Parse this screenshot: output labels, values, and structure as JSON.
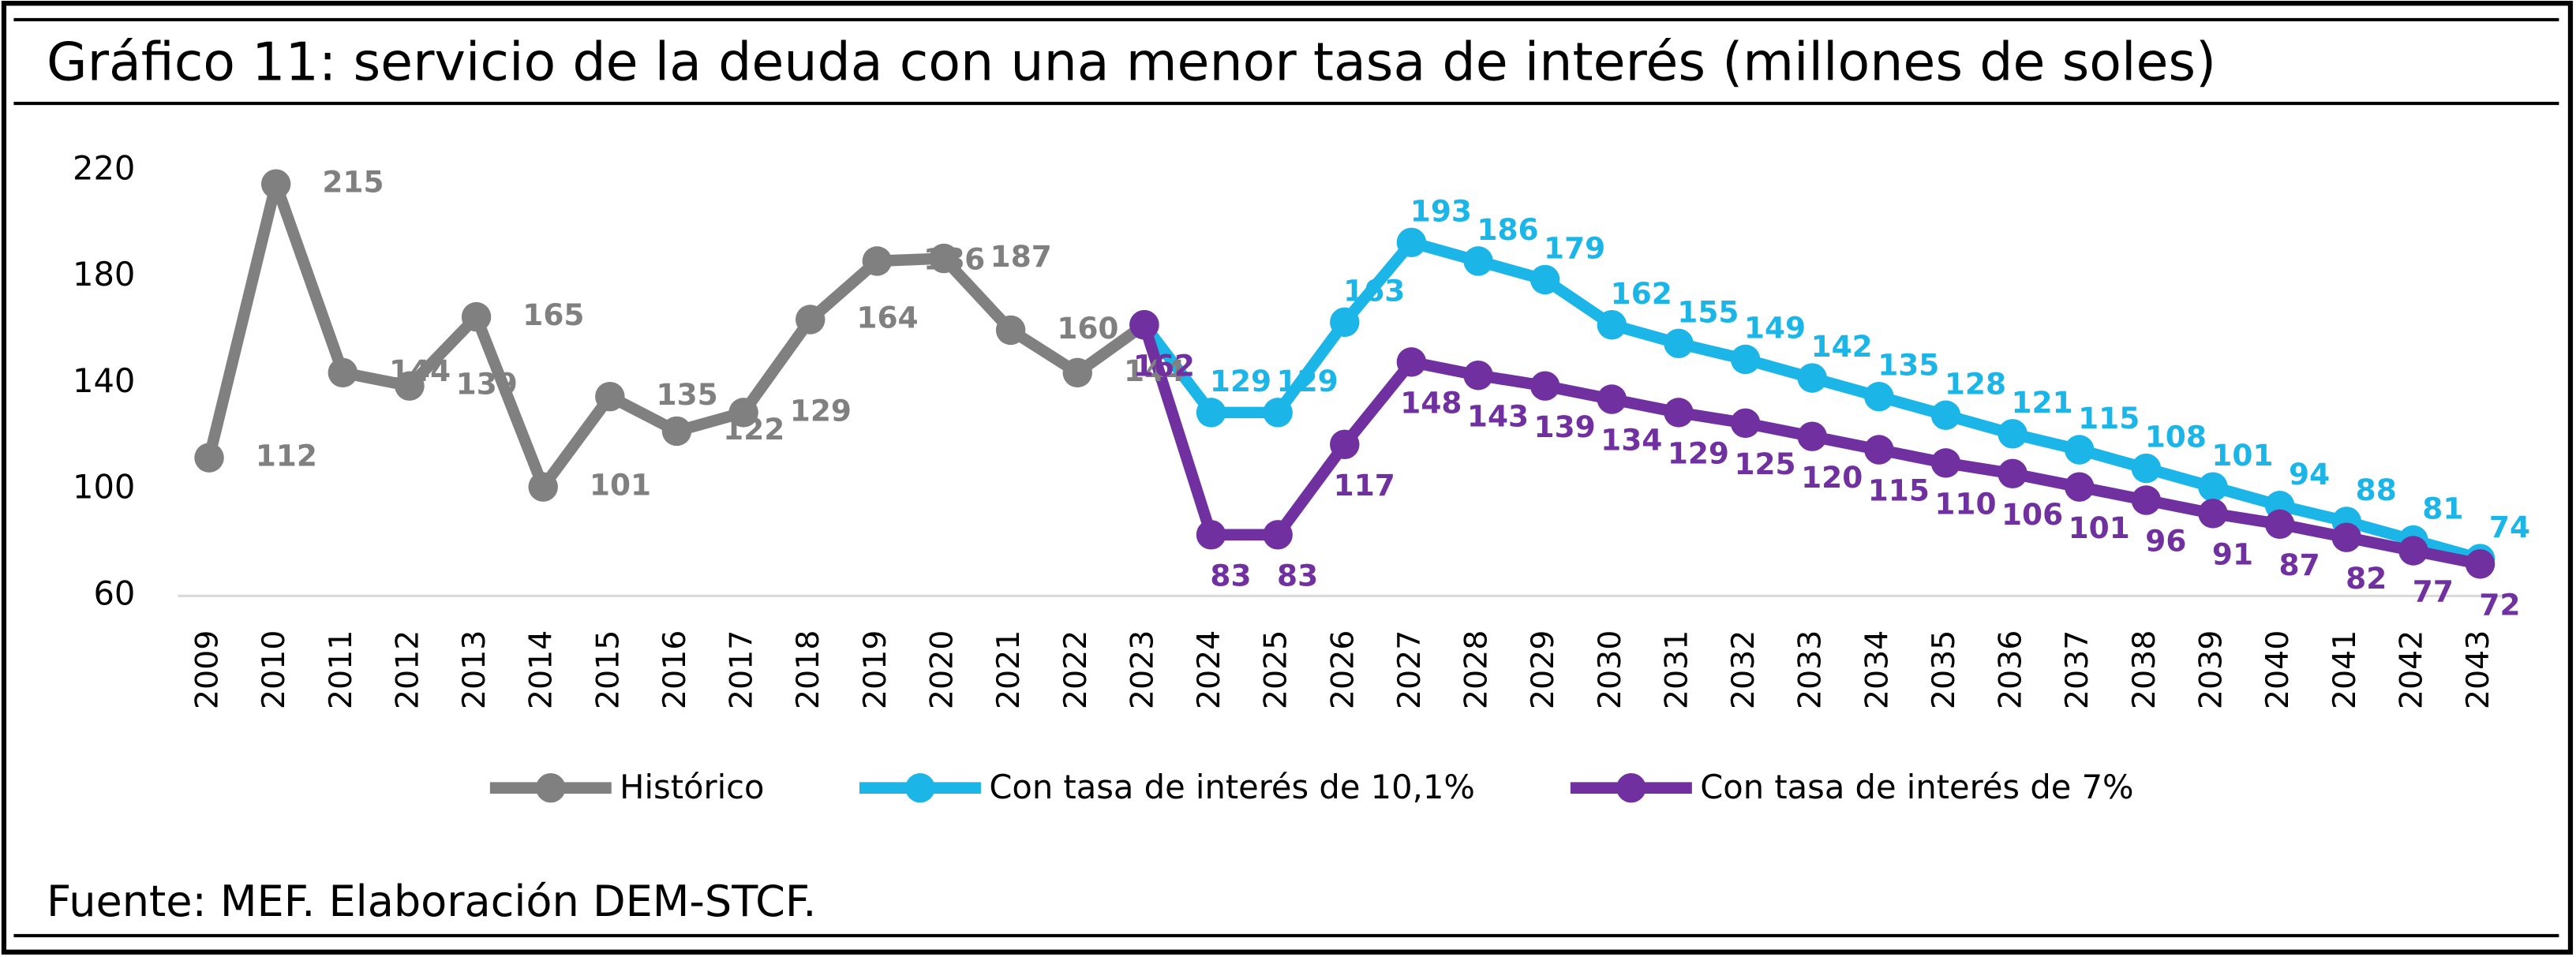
{
  "chart_data": {
    "type": "line",
    "title": "Gráfico 11: servicio de la deuda con una menor tasa de interés (millones de soles)",
    "source": "Fuente: MEF. Elaboración DEM-STCF.",
    "categories": [
      "2009",
      "2010",
      "2011",
      "2012",
      "2013",
      "2014",
      "2015",
      "2016",
      "2017",
      "2018",
      "2019",
      "2020",
      "2021",
      "2022",
      "2023",
      "2024",
      "2025",
      "2026",
      "2027",
      "2028",
      "2029",
      "2030",
      "2031",
      "2032",
      "2033",
      "2034",
      "2035",
      "2036",
      "2037",
      "2038",
      "2039",
      "2040",
      "2041",
      "2042",
      "2043"
    ],
    "series": [
      {
        "name": "Histórico",
        "color": "#808080",
        "values": [
          112,
          215,
          144,
          139,
          165,
          101,
          135,
          122,
          129,
          164,
          186,
          187,
          160,
          144,
          162,
          null,
          null,
          null,
          null,
          null,
          null,
          null,
          null,
          null,
          null,
          null,
          null,
          null,
          null,
          null,
          null,
          null,
          null,
          null,
          null
        ]
      },
      {
        "name": "Con tasa de interés de 10,1%",
        "color": "#1cb5e8",
        "values": [
          null,
          null,
          null,
          null,
          null,
          null,
          null,
          null,
          null,
          null,
          null,
          null,
          null,
          null,
          162,
          129,
          129,
          163,
          193,
          186,
          179,
          162,
          155,
          149,
          142,
          135,
          128,
          121,
          115,
          108,
          101,
          94,
          88,
          81,
          74
        ]
      },
      {
        "name": "Con tasa de interés de 7%",
        "color": "#7030a0",
        "values": [
          null,
          null,
          null,
          null,
          null,
          null,
          null,
          null,
          null,
          null,
          null,
          null,
          null,
          null,
          162,
          83,
          83,
          117,
          148,
          143,
          139,
          134,
          129,
          125,
          120,
          115,
          110,
          106,
          101,
          96,
          91,
          87,
          82,
          77,
          72
        ]
      }
    ],
    "ylim": [
      60,
      220
    ],
    "yticks": [
      60,
      100,
      140,
      180,
      220
    ],
    "legend": "bottom"
  }
}
